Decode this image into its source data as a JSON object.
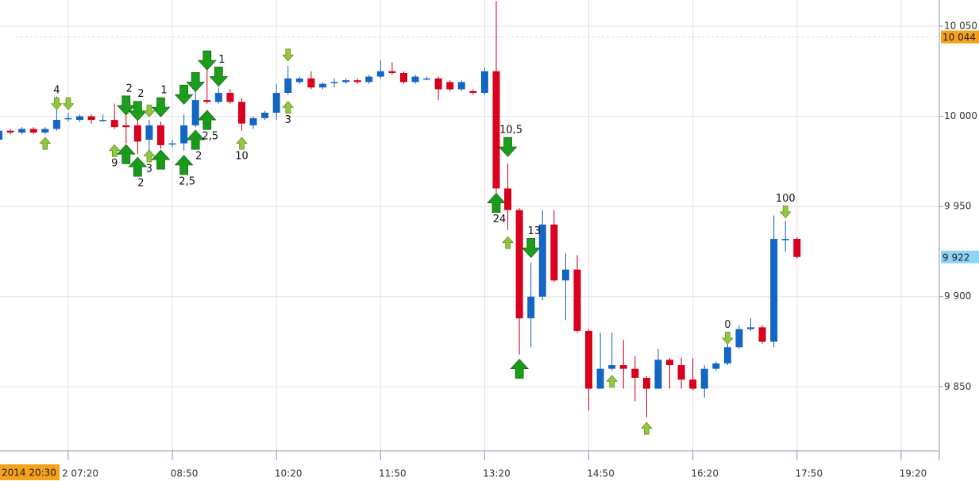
{
  "chart_data": {
    "type": "candlestick",
    "x": [
      "06:20",
      "06:30",
      "06:40",
      "06:50",
      "07:00",
      "07:10",
      "07:20",
      "07:30",
      "07:40",
      "07:50",
      "08:00",
      "08:10",
      "08:20",
      "08:30",
      "08:40",
      "08:50",
      "09:00",
      "09:10",
      "09:20",
      "09:30",
      "09:40",
      "09:50",
      "10:00",
      "10:10",
      "10:20",
      "10:30",
      "10:40",
      "10:50",
      "11:00",
      "11:10",
      "11:20",
      "11:30",
      "11:40",
      "11:50",
      "12:00",
      "12:10",
      "12:20",
      "12:30",
      "12:40",
      "12:50",
      "13:00",
      "13:10",
      "13:20",
      "13:30",
      "13:40",
      "13:50",
      "14:00",
      "14:10",
      "14:20",
      "14:30",
      "14:40",
      "14:50",
      "15:00",
      "15:10",
      "15:20",
      "15:30",
      "15:40",
      "15:50",
      "16:00",
      "16:10",
      "16:20",
      "16:30",
      "16:40",
      "16:50",
      "17:00",
      "17:10",
      "17:20",
      "17:30",
      "17:40",
      "17:50"
    ],
    "open": [
      9987,
      9992,
      9991,
      9993,
      9991,
      9993,
      9999,
      9998,
      10000,
      9998,
      9998,
      9995,
      9995,
      9987,
      9995,
      9985,
      9985,
      9995,
      10009,
      10008,
      10013,
      10008,
      9995,
      9999,
      10002,
      10013,
      10019,
      10021,
      10016,
      10019,
      10019,
      10020,
      10019,
      10022,
      10025,
      10024,
      10019,
      10021,
      10021,
      10019,
      10015,
      10014,
      10013,
      10025,
      9960,
      9948,
      9888,
      9900,
      9940,
      9909,
      9915,
      9881,
      9849,
      9860,
      9862,
      9860,
      9855,
      9849,
      9865,
      9862,
      9854,
      9849,
      9860,
      9863,
      9872,
      9882,
      9883,
      9875,
      9932,
      9932
    ],
    "high": [
      9993,
      9993,
      9994,
      9994,
      9994,
      10011,
      10002,
      10001,
      10001,
      10001,
      10007,
      10007,
      9998,
      9998,
      9997,
      9987,
      10001,
      10016,
      10029,
      10016,
      10015,
      10010,
      10000,
      10003,
      10018,
      10028,
      10022,
      10025,
      10019,
      10021,
      10021,
      10021,
      10023,
      10031,
      10030,
      10025,
      10023,
      10022,
      10022,
      10020,
      10020,
      10015,
      10027,
      10064,
      9974,
      9949,
      9919,
      9948,
      9948,
      9924,
      9923,
      9882,
      9880,
      9880,
      9876,
      9867,
      9856,
      9871,
      9866,
      9866,
      9866,
      9862,
      9864,
      9874,
      9884,
      9888,
      9884,
      9945,
      9942,
      9933
    ],
    "low": [
      9986,
      9990,
      9990,
      9990,
      9990,
      9992,
      9997,
      9997,
      9996,
      9997,
      9993,
      9985,
      9979,
      9981,
      9982,
      9983,
      9981,
      9994,
      10007,
      10007,
      10007,
      9992,
      9993,
      9998,
      9998,
      10012,
      10018,
      10015,
      10015,
      10016,
      10018,
      10018,
      10018,
      10021,
      10023,
      10018,
      10018,
      10020,
      10009,
      10014,
      10014,
      10012,
      10012,
      9949,
      9937,
      9868,
      9872,
      9898,
      9908,
      9887,
      9880,
      9837,
      9849,
      9859,
      9849,
      9842,
      9833,
      9849,
      9849,
      9849,
      9848,
      9844,
      9859,
      9862,
      9871,
      9881,
      9874,
      9872,
      9925,
      9921
    ],
    "close": [
      9992,
      9991,
      9993,
      9991,
      9993,
      9998,
      9999,
      10000,
      9998,
      9998,
      9994,
      9994,
      9986,
      9995,
      9984,
      9985,
      9995,
      10009,
      10008,
      10013,
      10008,
      9996,
      9999,
      10002,
      10013,
      10021,
      10021,
      10016,
      10018,
      10019,
      10020,
      10019,
      10022,
      10025,
      10024,
      10019,
      10022,
      10021,
      10015,
      10015,
      10019,
      10013,
      10025,
      9960,
      9948,
      9888,
      9900,
      9940,
      9909,
      9915,
      9881,
      9849,
      9860,
      9862,
      9860,
      9855,
      9849,
      9865,
      9862,
      9854,
      9849,
      9860,
      9863,
      9872,
      9882,
      9883,
      9875,
      9932,
      9932,
      9922
    ],
    "up_color": "#1466c4",
    "down_color": "#d8001c",
    "xlim": [
      "06:21",
      "19:53"
    ],
    "xticks": [
      {
        "value": "07:20",
        "label": "2 07:20"
      },
      "08:50",
      "10:20",
      "11:50",
      "13:20",
      "14:50",
      "16:20",
      "17:50",
      "19:20"
    ],
    "ylim": [
      9814.5,
      10064.5
    ],
    "yticks": [
      {
        "value": 9850,
        "label": "9 850"
      },
      {
        "value": 9900,
        "label": "9 900"
      },
      {
        "value": 9950,
        "label": "9 950"
      },
      {
        "value": 10000,
        "label": "10 000"
      },
      {
        "value": 10050,
        "label": "10 050"
      }
    ],
    "grid": true,
    "price_tags": [
      {
        "value": 10044,
        "label": "10 044",
        "color": "#f7a21b",
        "dashed": true
      },
      {
        "value": 9922,
        "label": "9 922",
        "color": "#8fd3f7",
        "dashed": false
      }
    ],
    "cursor_label": "2014 20:30",
    "annotations": [
      {
        "time": "07:10",
        "price": 10007,
        "dir": "down",
        "size": "small",
        "label": "4"
      },
      {
        "time": "07:20",
        "price": 10007,
        "dir": "down",
        "size": "small"
      },
      {
        "time": "07:00",
        "price": 9985,
        "dir": "up",
        "size": "small"
      },
      {
        "time": "08:10",
        "price": 10006,
        "dir": "down",
        "size": "large",
        "label": "2"
      },
      {
        "time": "08:20",
        "price": 10003,
        "dir": "down",
        "size": "large",
        "label": "2"
      },
      {
        "time": "08:30",
        "price": 10003,
        "dir": "down",
        "size": "small"
      },
      {
        "time": "08:40",
        "price": 10005,
        "dir": "down",
        "size": "large",
        "label": "1"
      },
      {
        "time": "08:00",
        "price": 9981,
        "dir": "up",
        "size": "small",
        "label": "9"
      },
      {
        "time": "08:10",
        "price": 9979,
        "dir": "up",
        "size": "large"
      },
      {
        "time": "08:20",
        "price": 9972,
        "dir": "up",
        "size": "large",
        "label": "2"
      },
      {
        "time": "08:30",
        "price": 9978,
        "dir": "up",
        "size": "small",
        "label": "3"
      },
      {
        "time": "08:40",
        "price": 9976,
        "dir": "up",
        "size": "large"
      },
      {
        "time": "09:00",
        "price": 10012,
        "dir": "down",
        "size": "large"
      },
      {
        "time": "09:10",
        "price": 10019,
        "dir": "down",
        "size": "large"
      },
      {
        "time": "09:20",
        "price": 10031,
        "dir": "down",
        "size": "large"
      },
      {
        "time": "09:30",
        "price": 10022,
        "dir": "down",
        "size": "large",
        "label": "1"
      },
      {
        "time": "09:00",
        "price": 9973,
        "dir": "up",
        "size": "large",
        "label": "2,5"
      },
      {
        "time": "09:10",
        "price": 9987,
        "dir": "up",
        "size": "large",
        "label": "2"
      },
      {
        "time": "09:20",
        "price": 9998,
        "dir": "up",
        "size": "large",
        "label": "2,5"
      },
      {
        "time": "09:50",
        "price": 9985,
        "dir": "up",
        "size": "small",
        "label": "10"
      },
      {
        "time": "10:30",
        "price": 10034,
        "dir": "down",
        "size": "small"
      },
      {
        "time": "10:30",
        "price": 10005,
        "dir": "up",
        "size": "small",
        "label": "3"
      },
      {
        "time": "13:30",
        "price": 9952,
        "dir": "up",
        "size": "large",
        "label": "24"
      },
      {
        "time": "13:40",
        "price": 9983,
        "dir": "down",
        "size": "large",
        "label": "10,5"
      },
      {
        "time": "13:40",
        "price": 9930,
        "dir": "up",
        "size": "small"
      },
      {
        "time": "14:00",
        "price": 9927,
        "dir": "down",
        "size": "large",
        "label": "13"
      },
      {
        "time": "13:50",
        "price": 9860,
        "dir": "up",
        "size": "large"
      },
      {
        "time": "15:10",
        "price": 9853,
        "dir": "up",
        "size": "small"
      },
      {
        "time": "15:40",
        "price": 9827,
        "dir": "up",
        "size": "small"
      },
      {
        "time": "16:50",
        "price": 9877,
        "dir": "down",
        "size": "small",
        "label": "0"
      },
      {
        "time": "17:40",
        "price": 9947,
        "dir": "down",
        "size": "small",
        "label": "100"
      }
    ]
  }
}
